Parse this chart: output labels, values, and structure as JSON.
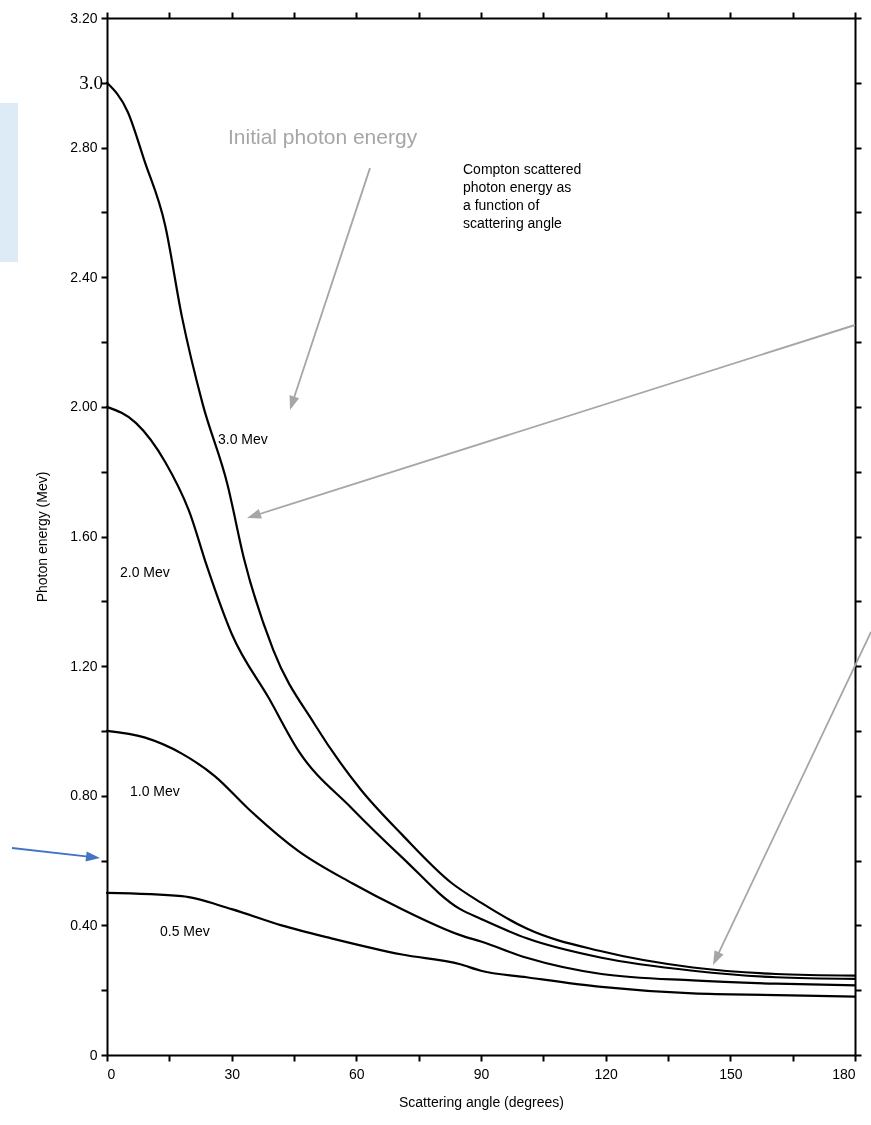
{
  "chart_data": {
    "type": "line",
    "xlabel": "Scattering angle (degrees)",
    "ylabel": "Photon energy (Mev)",
    "xlim": [
      0,
      180
    ],
    "ylim": [
      0,
      3.2
    ],
    "xticks": [
      0,
      {
        "value": 15,
        "label": null
      },
      30,
      {
        "value": 45,
        "label": null
      },
      60,
      {
        "value": 75,
        "label": null
      },
      90,
      {
        "value": 105,
        "label": null
      },
      120,
      {
        "value": 135,
        "label": null
      },
      150,
      {
        "value": 165,
        "label": null
      },
      180
    ],
    "yticks": [
      0,
      {
        "value": 0.2,
        "label": null
      },
      {
        "value": 0.4,
        "label": "0.40"
      },
      {
        "value": 0.6,
        "label": null
      },
      {
        "value": 0.8,
        "label": "0.80"
      },
      {
        "value": 1.0,
        "label": null
      },
      {
        "value": 1.2,
        "label": "1.20"
      },
      {
        "value": 1.4,
        "label": null
      },
      {
        "value": 1.6,
        "label": "1.60"
      },
      {
        "value": 1.8,
        "label": null
      },
      {
        "value": 2.0,
        "label": "2.00"
      },
      {
        "value": 2.2,
        "label": null
      },
      {
        "value": 2.4,
        "label": "2.40"
      },
      {
        "value": 2.6,
        "label": null
      },
      {
        "value": 2.8,
        "label": "2.80"
      },
      {
        "value": 3.0,
        "label": null
      },
      {
        "value": 3.2,
        "label": "3.20"
      }
    ],
    "grid": false,
    "marker": "none",
    "line_style": "solid",
    "series": [
      {
        "name": "3.0 Mev",
        "color": "#000000",
        "x": [
          0,
          5,
          9,
          14,
          18,
          23,
          29,
          33,
          40,
          50,
          61,
          71,
          83,
          90,
          101,
          119,
          141,
          161,
          180
        ],
        "values": [
          3.0,
          2.91,
          2.76,
          2.56,
          2.28,
          2.01,
          1.76,
          1.53,
          1.25,
          1.02,
          0.82,
          0.68,
          0.53,
          0.47,
          0.39,
          0.32,
          0.27,
          0.25,
          0.245
        ]
      },
      {
        "name": "2.0 Mev",
        "color": "#000000",
        "x": [
          0,
          7,
          14,
          20,
          24,
          30,
          39,
          46,
          59,
          71,
          85,
          90,
          101,
          119,
          141,
          161,
          180
        ],
        "values": [
          2.0,
          1.95,
          1.83,
          1.67,
          1.51,
          1.3,
          1.1,
          0.94,
          0.76,
          0.61,
          0.45,
          0.42,
          0.36,
          0.3,
          0.26,
          0.24,
          0.235
        ]
      },
      {
        "name": "1.0 Mev",
        "color": "#000000",
        "x": [
          0,
          9,
          18,
          26,
          34,
          46,
          59,
          71,
          85,
          90,
          101,
          119,
          141,
          161,
          180
        ],
        "values": [
          1.0,
          0.98,
          0.93,
          0.86,
          0.76,
          0.63,
          0.53,
          0.45,
          0.37,
          0.35,
          0.3,
          0.25,
          0.23,
          0.22,
          0.215
        ]
      },
      {
        "name": "0.5 Mev",
        "color": "#000000",
        "x": [
          0,
          18,
          30,
          42,
          54,
          71,
          85,
          90,
          101,
          119,
          141,
          161,
          180
        ],
        "values": [
          0.5,
          0.49,
          0.45,
          0.4,
          0.36,
          0.31,
          0.28,
          0.26,
          0.24,
          0.21,
          0.19,
          0.185,
          0.18
        ]
      }
    ],
    "annotations": [
      {
        "text": "3.0",
        "x": 0,
        "y": 3.0
      },
      "Initial photon energy",
      "Compton scattered photon energy as a function of scattering angle"
    ]
  }
}
